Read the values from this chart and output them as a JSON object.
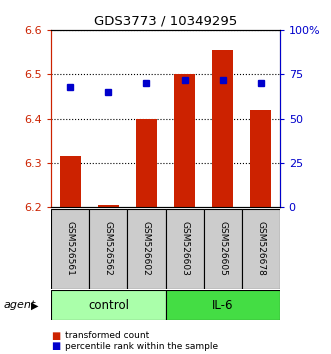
{
  "title": "GDS3773 / 10349295",
  "samples": [
    "GSM526561",
    "GSM526562",
    "GSM526602",
    "GSM526603",
    "GSM526605",
    "GSM526678"
  ],
  "bar_bottom": 6.2,
  "bar_tops": [
    6.315,
    6.205,
    6.4,
    6.5,
    6.555,
    6.42
  ],
  "blue_dot_percentiles": [
    68,
    65,
    70,
    72,
    72,
    70
  ],
  "ylim": [
    6.2,
    6.6
  ],
  "y2lim": [
    0,
    100
  ],
  "yticks_left": [
    6.2,
    6.3,
    6.4,
    6.5,
    6.6
  ],
  "ytick_labels_left": [
    "6.2",
    "6.3",
    "6.4",
    "6.5",
    "6.6"
  ],
  "yticks_right": [
    0,
    25,
    50,
    75,
    100
  ],
  "ytick_labels_right": [
    "0",
    "25",
    "50",
    "75",
    "100%"
  ],
  "bar_color": "#cc2200",
  "dot_color": "#0000cc",
  "bar_width": 0.55,
  "sample_box_color": "#cccccc",
  "control_color": "#aaffaa",
  "il6_color": "#44dd44",
  "group_positions": [
    [
      0,
      2,
      "control"
    ],
    [
      3,
      5,
      "IL-6"
    ]
  ]
}
